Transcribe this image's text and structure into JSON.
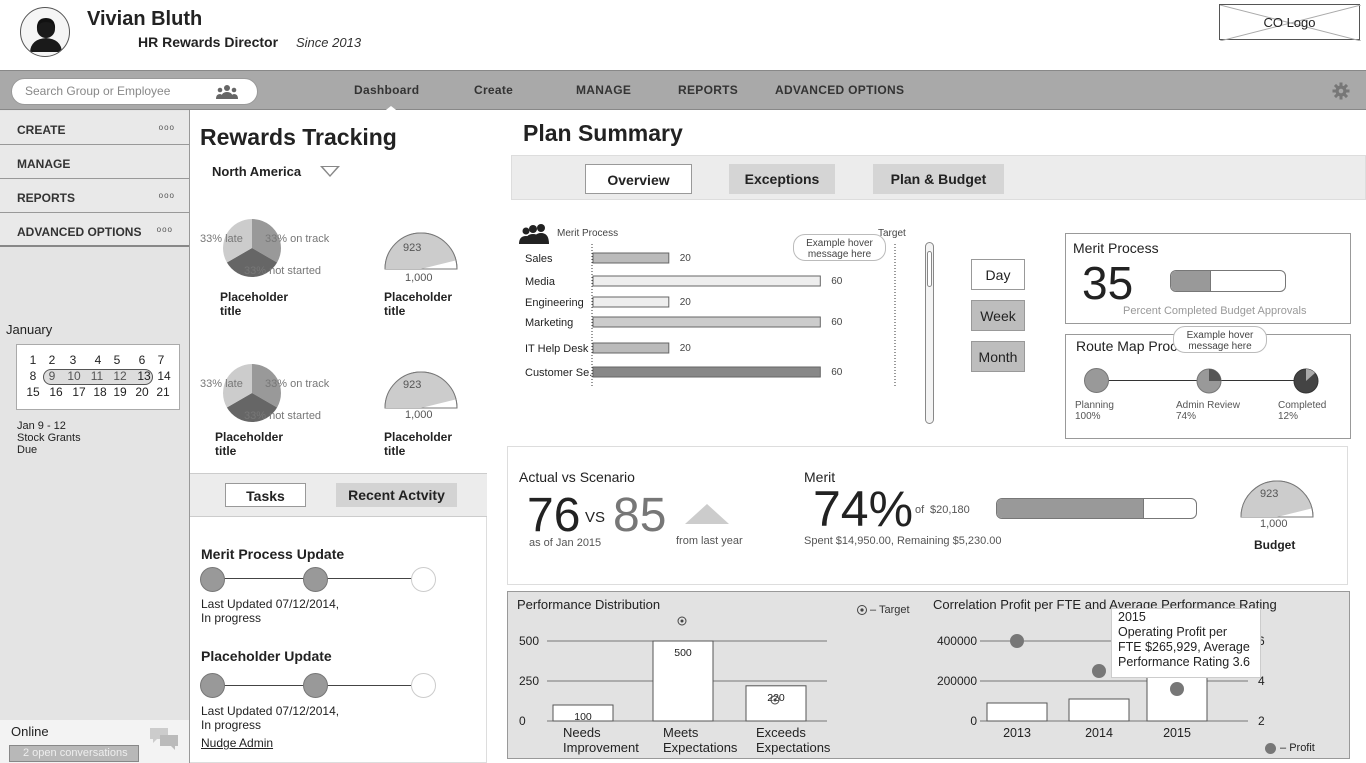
{
  "user": {
    "name": "Vivian Bluth",
    "role": "HR Rewards Director",
    "since": "Since 2013"
  },
  "logo": {
    "label": "CO Logo"
  },
  "search": {
    "placeholder": "Search Group or Employee"
  },
  "nav": {
    "dashboard": "Dashboard",
    "create": "Create",
    "manage": "MANAGE",
    "reports": "REPORTS",
    "advanced": "ADVANCED OPTIONS"
  },
  "sidebar": {
    "items": [
      {
        "label": "CREATE",
        "dots": "ooo"
      },
      {
        "label": "MANAGE",
        "dots": ""
      },
      {
        "label": "REPORTS",
        "dots": "ooo"
      },
      {
        "label": "ADVANCED OPTIONS",
        "dots": "ooo"
      }
    ],
    "calendar": {
      "month": "January",
      "rows": [
        [
          "1",
          "2",
          "3",
          "4",
          "5",
          "6",
          "7"
        ],
        [
          "8",
          "9",
          "10",
          "11",
          "12",
          "13",
          "14"
        ],
        [
          "15",
          "16",
          "17",
          "18",
          "19",
          "20",
          "21"
        ]
      ],
      "note_dates": "Jan 9 - 12",
      "note_line1": "Stock Grants",
      "note_line2": "Due"
    },
    "online": "Online",
    "open_conversations": "2 open conversations"
  },
  "rewards": {
    "title": "Rewards Tracking",
    "region": "North America",
    "pies": [
      {
        "late": "33% late",
        "on_track": "33% on track",
        "not_started": "33% not started",
        "title1": "Placeholder",
        "title2": "title"
      },
      {
        "late": "33% late",
        "on_track": "33% on track",
        "not_started": "33% not started",
        "title1": "Placeholder",
        "title2": "title"
      }
    ],
    "gauges": [
      {
        "value": "923",
        "max": "1,000",
        "value_fraction": 0.923,
        "title1": "Placeholder",
        "title2": "title"
      },
      {
        "value": "923",
        "max": "1,000",
        "value_fraction": 0.923,
        "title1": "Placeholder",
        "title2": "title"
      }
    ],
    "tabs": {
      "tasks": "Tasks",
      "recent": "Recent Actvity"
    },
    "updates": [
      {
        "title": "Merit Process Update",
        "line1": "Last Updated 07/12/2014,",
        "line2": "In progress"
      },
      {
        "title": "Placeholder Update",
        "line1": "Last Updated 07/12/2014,",
        "line2": "In progress"
      }
    ],
    "nudge": "Nudge Admin"
  },
  "plan": {
    "title": "Plan Summary",
    "tabs": {
      "overview": "Overview",
      "exceptions": "Exceptions",
      "budget": "Plan & Budget"
    },
    "merit_chart": {
      "legend": "Merit Process",
      "target_label": "Target",
      "hover": "Example hover message here",
      "bars": [
        {
          "label": "Sales",
          "value": "20"
        },
        {
          "label": "Media",
          "value": "60"
        },
        {
          "label": "Engineering",
          "value": "20"
        },
        {
          "label": "Marketing",
          "value": "60"
        },
        {
          "label": "IT Help Desk",
          "value": "20"
        },
        {
          "label": "Customer Se..",
          "value": "60"
        }
      ]
    },
    "time_buttons": {
      "day": "Day",
      "week": "Week",
      "month": "Month"
    },
    "merit_panel": {
      "title": "Merit Process",
      "value": "35",
      "progress": 0.35,
      "caption": "Percent Completed Budget Approvals"
    },
    "route_map": {
      "title": "Route Map Proc",
      "hover": "Example hover message here",
      "steps": [
        {
          "name": "Planning",
          "pct": "100%"
        },
        {
          "name": "Admin Review",
          "pct": "74%"
        },
        {
          "name": "Completed",
          "pct": "12%"
        }
      ]
    },
    "actual": {
      "title": "Actual vs Scenario",
      "actual": "76",
      "vs": "VS",
      "scenario": "85",
      "asof": "as of Jan 2015",
      "from": "from last year"
    },
    "merit_summary": {
      "title": "Merit",
      "pct": "74%",
      "of": "of",
      "total": "$20,180",
      "detail": "Spent $14,950.00, Remaining $5,230.00",
      "progress": 0.74
    },
    "budget_gauge": {
      "value": "923",
      "max": "1,000",
      "label": "Budget",
      "value_fraction": 0.923
    }
  },
  "perf": {
    "title": "Performance Distribution",
    "target": "– Target",
    "y_ticks": [
      "500",
      "250",
      "0"
    ],
    "bars": [
      {
        "value": "100",
        "label1": "Needs",
        "label2": "Improvement"
      },
      {
        "value": "500",
        "label1": "Meets",
        "label2": "Expectations"
      },
      {
        "value": "220",
        "label1": "Exceeds",
        "label2": "Expectations"
      }
    ]
  },
  "corr": {
    "title": "Correlation Profit per FTE and Average Performance Rating",
    "y_left": [
      "400000",
      "200000",
      "0"
    ],
    "y_right": [
      "6",
      "4",
      "2"
    ],
    "years": [
      "2013",
      "2014",
      "2015"
    ],
    "tooltip": {
      "year": "2015",
      "line1": "Operating Profit per",
      "line2": "FTE $265,929, Average",
      "line3": "Performance Rating 3.6"
    },
    "legend": "Profit"
  },
  "chart_data": [
    {
      "type": "bar",
      "title": "Merit Process",
      "categories": [
        "Sales",
        "Media",
        "Engineering",
        "Marketing",
        "IT Help Desk",
        "Customer Se.."
      ],
      "values": [
        20,
        60,
        20,
        60,
        20,
        60
      ],
      "xlim": [
        0,
        80
      ]
    },
    {
      "type": "bar",
      "title": "Performance Distribution",
      "categories": [
        "Needs Improvement",
        "Meets Expectations",
        "Exceeds Expectations"
      ],
      "values": [
        100,
        500,
        220
      ],
      "ylim": [
        0,
        500
      ],
      "y_ticks": [
        0,
        250,
        500
      ]
    },
    {
      "type": "bar",
      "title": "Correlation Profit per FTE and Average Performance Rating",
      "categories": [
        "2013",
        "2014",
        "2015"
      ],
      "series": [
        {
          "name": "Profit",
          "values": [
            90000,
            110000,
            265929
          ]
        }
      ],
      "ylim": [
        0,
        400000
      ],
      "y_ticks": [
        0,
        200000,
        400000
      ],
      "y2_ticks": [
        2,
        4,
        6
      ],
      "y2_range": [
        2,
        6
      ],
      "y2_series": {
        "values": [
          6.0,
          4.5,
          3.6
        ]
      }
    }
  ]
}
